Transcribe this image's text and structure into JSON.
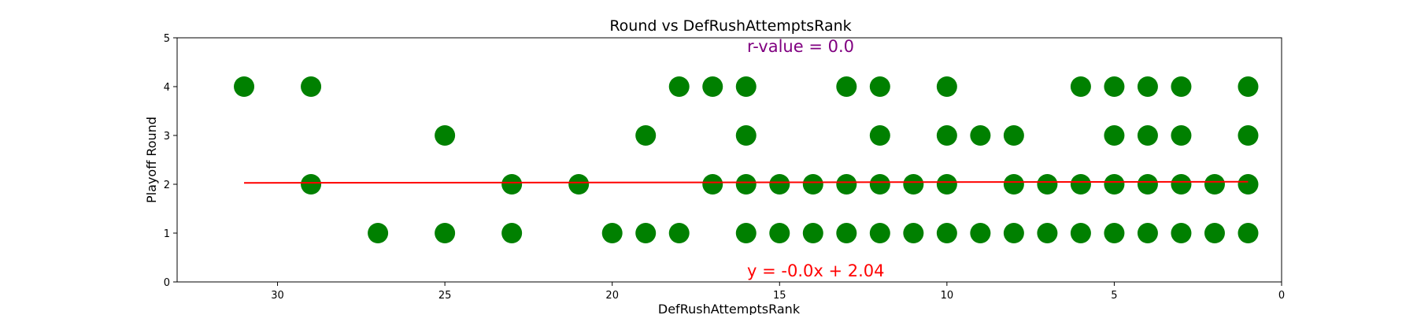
{
  "chart_data": {
    "type": "scatter",
    "title": "Round vs DefRushAttemptsRank",
    "xlabel": "DefRushAttemptsRank",
    "ylabel": "Playoff Round",
    "xlim": [
      33,
      0
    ],
    "ylim": [
      0,
      5
    ],
    "x_inverted": true,
    "xticks": [
      30,
      25,
      20,
      15,
      10,
      5,
      0
    ],
    "yticks": [
      0,
      1,
      2,
      3,
      4,
      5
    ],
    "grid": false,
    "marker_color": "#008000",
    "series": [
      {
        "points": [
          [
            31,
            4
          ],
          [
            29,
            4
          ],
          [
            18,
            4
          ],
          [
            17,
            4
          ],
          [
            16,
            4
          ],
          [
            13,
            4
          ],
          [
            12,
            4
          ],
          [
            10,
            4
          ],
          [
            6,
            4
          ],
          [
            5,
            4
          ],
          [
            4,
            4
          ],
          [
            3,
            4
          ],
          [
            1,
            4
          ],
          [
            25,
            3
          ],
          [
            19,
            3
          ],
          [
            16,
            3
          ],
          [
            12,
            3
          ],
          [
            10,
            3
          ],
          [
            9,
            3
          ],
          [
            8,
            3
          ],
          [
            5,
            3
          ],
          [
            4,
            3
          ],
          [
            3,
            3
          ],
          [
            1,
            3
          ],
          [
            29,
            2
          ],
          [
            23,
            2
          ],
          [
            21,
            2
          ],
          [
            17,
            2
          ],
          [
            16,
            2
          ],
          [
            15,
            2
          ],
          [
            14,
            2
          ],
          [
            13,
            2
          ],
          [
            12,
            2
          ],
          [
            11,
            2
          ],
          [
            10,
            2
          ],
          [
            8,
            2
          ],
          [
            7,
            2
          ],
          [
            6,
            2
          ],
          [
            5,
            2
          ],
          [
            4,
            2
          ],
          [
            3,
            2
          ],
          [
            2,
            2
          ],
          [
            1,
            2
          ],
          [
            27,
            1
          ],
          [
            25,
            1
          ],
          [
            23,
            1
          ],
          [
            20,
            1
          ],
          [
            19,
            1
          ],
          [
            18,
            1
          ],
          [
            16,
            1
          ],
          [
            15,
            1
          ],
          [
            14,
            1
          ],
          [
            13,
            1
          ],
          [
            12,
            1
          ],
          [
            11,
            1
          ],
          [
            10,
            1
          ],
          [
            9,
            1
          ],
          [
            8,
            1
          ],
          [
            7,
            1
          ],
          [
            6,
            1
          ],
          [
            5,
            1
          ],
          [
            4,
            1
          ],
          [
            3,
            1
          ],
          [
            2,
            1
          ],
          [
            1,
            1
          ]
        ]
      }
    ],
    "regression": {
      "slope": 0.0,
      "intercept": 2.04,
      "x_range": [
        31,
        1
      ],
      "color": "#ff0000"
    },
    "annotations": {
      "r_value": {
        "text": "r-value = 0.0",
        "color": "#800080"
      },
      "equation": {
        "text": "y = -0.0x + 2.04",
        "color": "#ff0000"
      }
    }
  }
}
